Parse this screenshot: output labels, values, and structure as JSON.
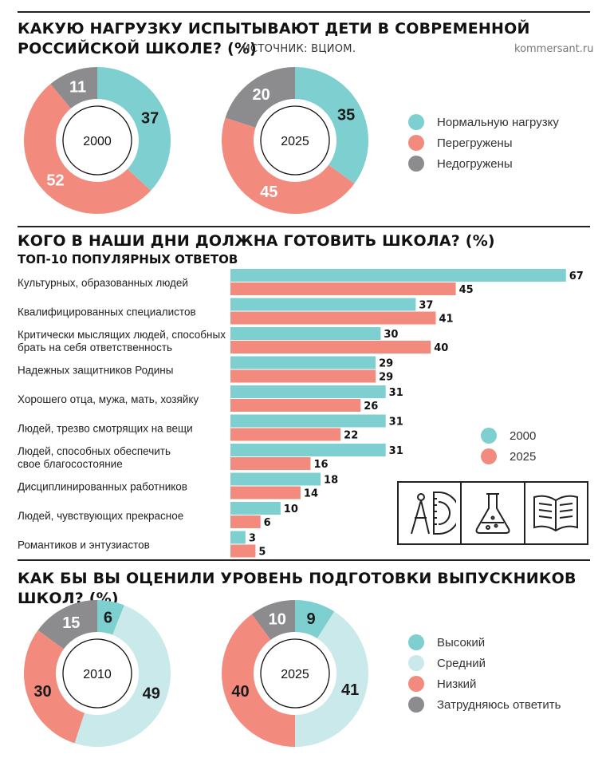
{
  "colors": {
    "teal": "#7ecfcf",
    "salmon": "#f28b7d",
    "gray": "#8c8c8e",
    "light_teal": "#c9e9ea"
  },
  "header": {
    "title_line1": "КАКУЮ НАГРУЗКУ ИСПЫТЫВАЮТ ДЕТИ В СОВРЕМЕННОЙ",
    "title_line2": "РОССИЙСКОЙ ШКОЛЕ? (%)",
    "source": "ИСТОЧНИК: ВЦИОМ.",
    "site": "kommersant.ru"
  },
  "section2": {
    "title": "КОГО В НАШИ ДНИ ДОЛЖНА ГОТОВИТЬ ШКОЛА? (%)",
    "subtitle": "ТОП-10 ПОПУЛЯРНЫХ ОТВЕТОВ"
  },
  "section3": {
    "title": "КАК БЫ ВЫ ОЦЕНИЛИ УРОВЕНЬ ПОДГОТОВКИ ВЫПУСКНИКОВ ШКОЛ? (%)"
  },
  "icons": [
    "compass-protractor-icon",
    "flask-icon",
    "open-book-icon"
  ],
  "chart_data": [
    {
      "type": "pie",
      "title": "КАКУЮ НАГРУЗКУ ИСПЫТЫВАЮТ ДЕТИ В СОВРЕМЕННОЙ РОССИЙСКОЙ ШКОЛЕ? (%)",
      "categories": [
        "Нормальную нагрузку",
        "Перегружены",
        "Недогружены"
      ],
      "colors": [
        "#7ecfcf",
        "#f28b7d",
        "#8c8c8e"
      ],
      "series": [
        {
          "name": "2000",
          "values": [
            37,
            52,
            11
          ]
        },
        {
          "name": "2025",
          "values": [
            35,
            45,
            20
          ]
        }
      ],
      "legend": "right"
    },
    {
      "type": "bar",
      "orientation": "horizontal",
      "title": "КОГО В НАШИ ДНИ ДОЛЖНА ГОТОВИТЬ ШКОЛА? (%)",
      "subtitle": "ТОП-10 ПОПУЛЯРНЫХ ОТВЕТОВ",
      "categories": [
        [
          "Культурных, образованных людей"
        ],
        [
          "Квалифицированных специалистов"
        ],
        [
          "Критически мыслящих людей, способных",
          "брать на себя ответственность"
        ],
        [
          "Надежных защитников Родины"
        ],
        [
          "Хорошего отца, мужа, мать, хозяйку"
        ],
        [
          "Людей, трезво смотрящих на вещи"
        ],
        [
          "Людей, способных обеспечить",
          "свое благосостояние"
        ],
        [
          "Дисциплинированных работников"
        ],
        [
          "Людей, чувствующих прекрасное"
        ],
        [
          "Романтиков и энтузиастов"
        ]
      ],
      "series": [
        {
          "name": "2000",
          "color": "#7ecfcf",
          "values": [
            67,
            37,
            30,
            29,
            31,
            31,
            31,
            18,
            10,
            3
          ]
        },
        {
          "name": "2025",
          "color": "#f28b7d",
          "values": [
            45,
            41,
            40,
            29,
            26,
            22,
            16,
            14,
            6,
            5
          ]
        }
      ],
      "legend": "right"
    },
    {
      "type": "pie",
      "title": "КАК БЫ ВЫ ОЦЕНИЛИ УРОВЕНЬ ПОДГОТОВКИ ВЫПУСКНИКОВ ШКОЛ? (%)",
      "categories": [
        "Высокий",
        "Средний",
        "Низкий",
        "Затрудняюсь ответить"
      ],
      "colors": [
        "#7ecfcf",
        "#c9e9ea",
        "#f28b7d",
        "#8c8c8e"
      ],
      "series": [
        {
          "name": "2010",
          "values": [
            6,
            49,
            30,
            15
          ]
        },
        {
          "name": "2025",
          "values": [
            9,
            41,
            40,
            10
          ]
        }
      ],
      "legend": "right"
    }
  ]
}
